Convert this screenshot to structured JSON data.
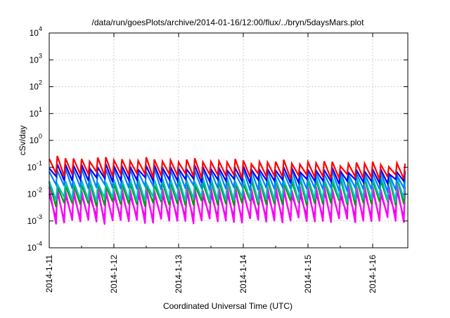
{
  "chart_data": {
    "type": "line",
    "title": "/data/run/goesPlots/archive/2014-01-16/12:00/flux/../bryn/5daysMars.plot",
    "xlabel": "Coordinated Universal Time (UTC)",
    "ylabel": "cSv/day",
    "yscale": "log",
    "ylim": [
      0.0001,
      10000
    ],
    "xlim": [
      "2014-01-11",
      "2014-01-16 12:00"
    ],
    "x_ticks": [
      "2014-1-11",
      "2014-1-12",
      "2014-1-13",
      "2014-1-14",
      "2014-1-15",
      "2014-1-16"
    ],
    "y_ticks": [
      {
        "base": "10",
        "exp": "-4"
      },
      {
        "base": "10",
        "exp": "-3"
      },
      {
        "base": "10",
        "exp": "-2"
      },
      {
        "base": "10",
        "exp": "-1"
      },
      {
        "base": "10",
        "exp": "0"
      },
      {
        "base": "10",
        "exp": "1"
      },
      {
        "base": "10",
        "exp": "2"
      },
      {
        "base": "10",
        "exp": "3"
      },
      {
        "base": "10",
        "exp": "4"
      }
    ],
    "grid": true,
    "legend": "none",
    "sawtooth_cycles_per_day": 8,
    "series": [
      {
        "color": "#ff0000",
        "peak_start": 0.22,
        "peak_end": 0.13,
        "trough_start": 0.055,
        "trough_end": 0.04
      },
      {
        "color": "#0000ff",
        "peak_start": 0.12,
        "peak_end": 0.07,
        "trough_start": 0.035,
        "trough_end": 0.028
      },
      {
        "color": "#0080ff",
        "peak_start": 0.085,
        "peak_end": 0.06,
        "trough_start": 0.018,
        "trough_end": 0.014
      },
      {
        "color": "#00c0c0",
        "peak_start": 0.03,
        "peak_end": 0.05,
        "trough_start": 0.006,
        "trough_end": 0.006
      },
      {
        "color": "#00a000",
        "peak_start": 0.022,
        "peak_end": 0.04,
        "trough_start": 0.004,
        "trough_end": 0.0045
      },
      {
        "color": "#ff00ff",
        "peak_start": 0.015,
        "peak_end": 0.02,
        "trough_start": 0.0009,
        "trough_end": 0.001
      },
      {
        "color": "#c000c0",
        "peak_start": 0.01,
        "peak_end": 0.012,
        "trough_start": 0.0012,
        "trough_end": 0.0014
      }
    ]
  }
}
